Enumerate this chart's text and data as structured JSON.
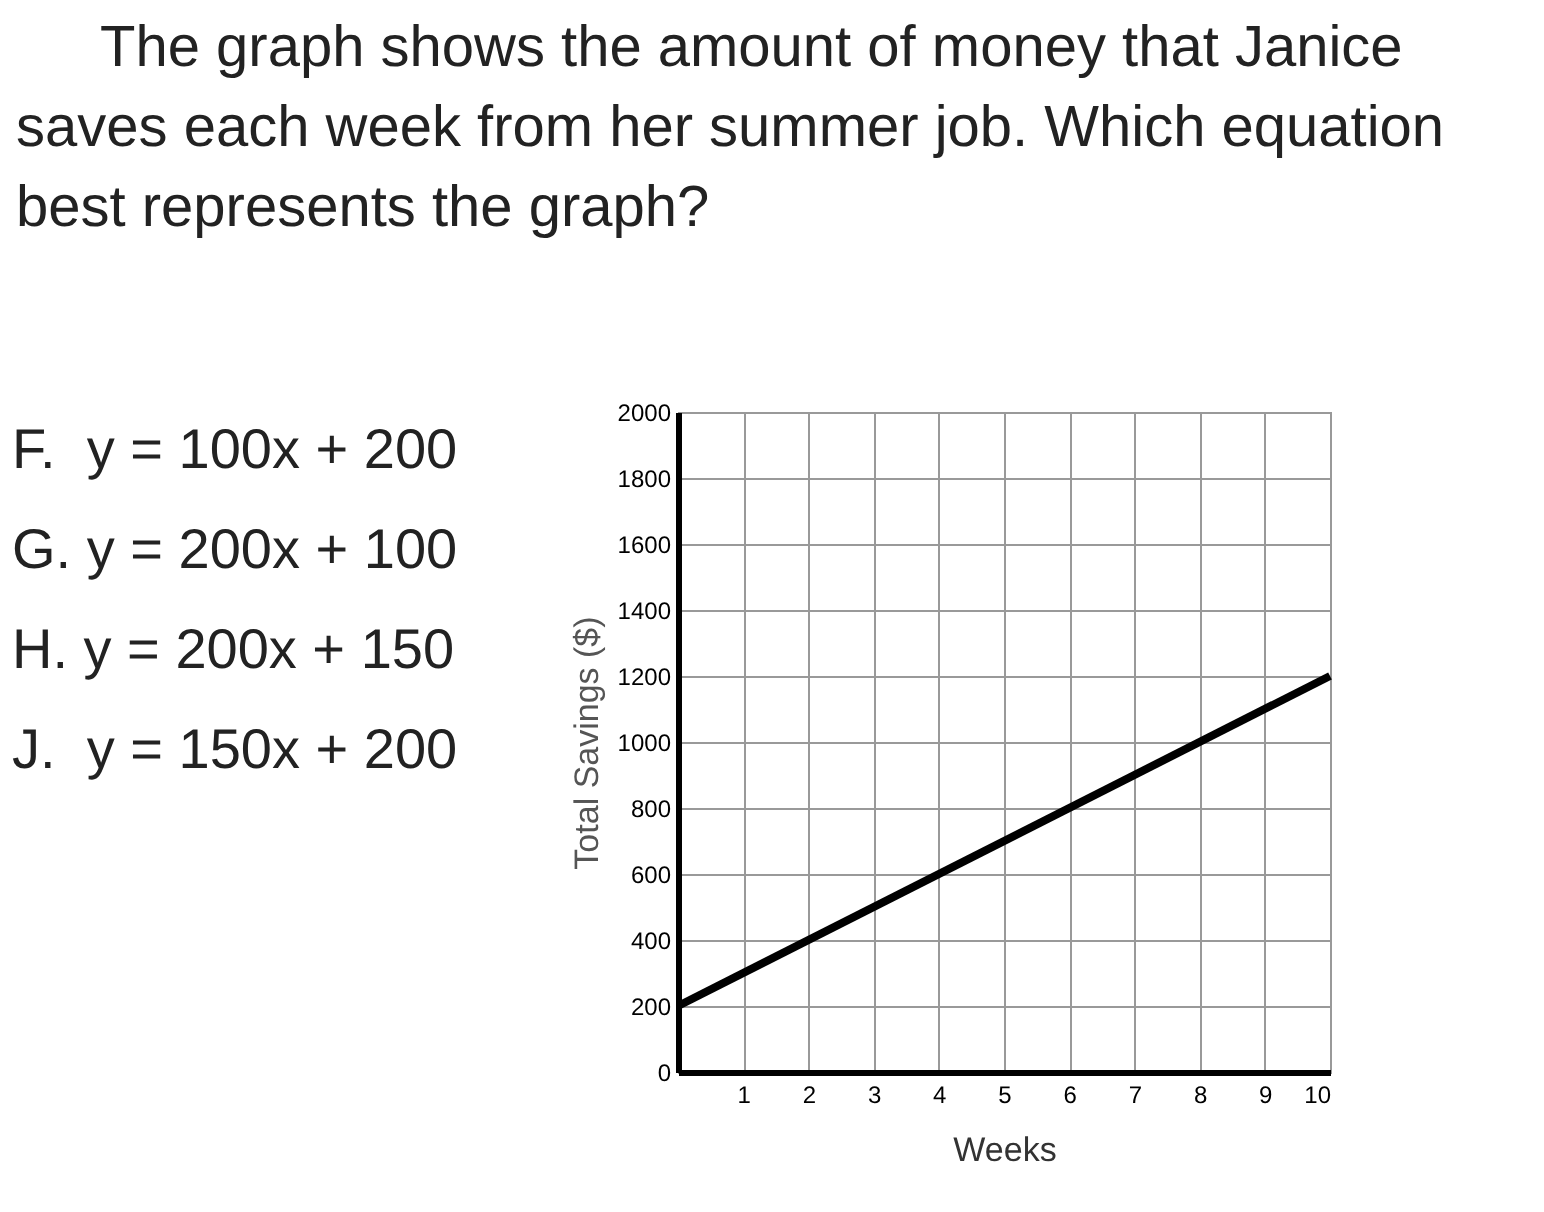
{
  "chart_data": {
    "type": "line",
    "title": "The graph shows the amount of money that Janice saves each week from her summer job.  Which equation best represents the graph?",
    "xlabel": "Weeks",
    "ylabel": "Total Savings ($)",
    "annotations": [
      "F.  y = 100x + 200",
      "G. y = 200x + 100",
      "H. y = 200x + 150",
      "J.  y = 150x + 200"
    ],
    "x": [
      0,
      10
    ],
    "series": [
      {
        "color": "#000000",
        "values": [
          200,
          1200
        ]
      }
    ],
    "xlim": [
      0,
      10
    ],
    "xticks": [
      1,
      2,
      3,
      4,
      5,
      6,
      7,
      8,
      9,
      10
    ],
    "ylim": [
      0,
      2000
    ],
    "yticks": [
      0,
      200,
      400,
      600,
      800,
      1000,
      1200,
      1400,
      1600,
      1800,
      2000
    ],
    "grid": true,
    "marker": "none",
    "line_style": "solid"
  }
}
